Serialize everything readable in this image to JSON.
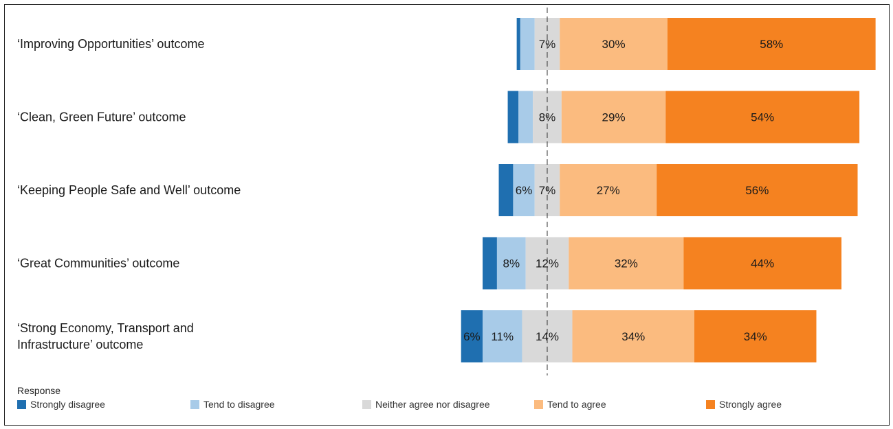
{
  "chart_data": {
    "type": "bar",
    "orientation": "horizontal",
    "stacking": "diverging",
    "title": "",
    "xlabel": "",
    "ylabel": "",
    "categories": [
      [
        "‘Improving Opportunities’ outcome"
      ],
      [
        "‘Clean, Green Future’ outcome"
      ],
      [
        "‘Keeping People Safe and Well’ outcome"
      ],
      [
        "‘Great Communities’ outcome"
      ],
      [
        "‘Strong Economy, Transport and",
        "Infrastructure’ outcome"
      ]
    ],
    "series": [
      {
        "name": "Strongly disagree",
        "color": "#1f6fb0",
        "values": [
          1,
          3,
          4,
          4,
          6
        ],
        "labels": [
          "",
          "",
          "",
          "",
          "6%"
        ]
      },
      {
        "name": "Tend to disagree",
        "color": "#a8cbe8",
        "values": [
          4,
          4,
          6,
          8,
          11
        ],
        "labels": [
          "",
          "",
          "6%",
          "8%",
          "11%"
        ]
      },
      {
        "name": "Neither agree nor disagree",
        "color": "#d9d9d9",
        "values": [
          7,
          8,
          7,
          12,
          14
        ],
        "labels": [
          "7%",
          "8%",
          "7%",
          "12%",
          "14%"
        ]
      },
      {
        "name": "Tend to agree",
        "color": "#fbbb7f",
        "values": [
          30,
          29,
          27,
          32,
          34
        ],
        "labels": [
          "30%",
          "29%",
          "27%",
          "32%",
          "34%"
        ]
      },
      {
        "name": "Strongly agree",
        "color": "#f58220",
        "values": [
          58,
          54,
          56,
          44,
          34
        ],
        "labels": [
          "58%",
          "54%",
          "56%",
          "44%",
          "34%"
        ]
      }
    ],
    "legend": {
      "title": "Response",
      "position": "bottom"
    },
    "grid": false
  }
}
